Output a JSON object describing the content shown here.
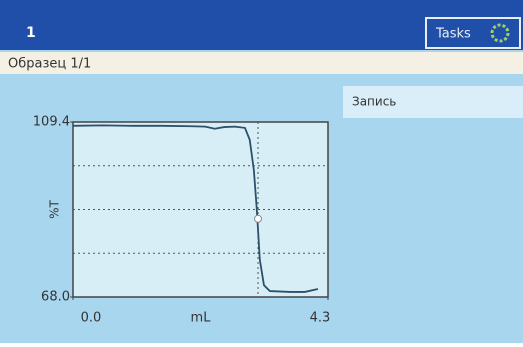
{
  "header": {
    "title": "1",
    "tasks": "Tasks"
  },
  "subheader": "Образец 1/1",
  "menu": {
    "items": [
      "Запись"
    ]
  },
  "chart_data": {
    "type": "line",
    "x_label": "mL",
    "y_label": "%T",
    "x": [
      0,
      0.5,
      1.0,
      1.5,
      2.0,
      2.23,
      2.39,
      2.55,
      2.73,
      2.9,
      2.98,
      3.05,
      3.1,
      3.15,
      3.22,
      3.32,
      3.66,
      3.91,
      4.13
    ],
    "values": [
      108.5,
      108.6,
      108.5,
      108.5,
      108.4,
      108.3,
      107.8,
      108.2,
      108.3,
      108.0,
      105.2,
      98.0,
      88.6,
      76.8,
      70.8,
      69.4,
      69.2,
      69.2,
      69.9
    ],
    "color": "#2c4f6a",
    "xlim": [
      0,
      4.3
    ],
    "ylim": [
      68,
      109.4
    ],
    "xticks": [
      {
        "value": 0,
        "label": "0.0"
      },
      4.3
    ],
    "yticks": [
      {
        "value": 68,
        "label": "68.0"
      },
      109.4
    ],
    "ygrid": [
      78.35,
      88.7,
      99.05
    ],
    "endpoint": {
      "x": 3.12,
      "y": 86.5
    }
  }
}
